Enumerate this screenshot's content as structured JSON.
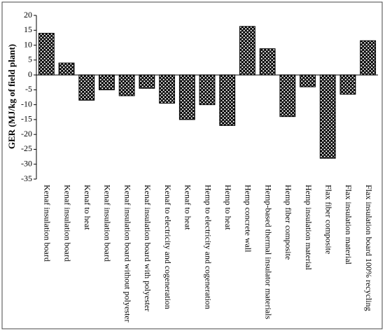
{
  "chart_data": {
    "type": "bar",
    "y_label": "GER (MJ/kg of field plant)",
    "categories": [
      "Kenaf insulation board",
      "Kenaf insulation board",
      "Kenaf to heat",
      "Kenaf insulation board",
      "Kenaf insulation board without polyester",
      "Kenaf insulation board with polyester",
      "Kenaf to electricity and cogeneration",
      "Kenaf to heat",
      "Hemp to electricity and cogeneration",
      "Hemp to heat",
      "Hemp concrete wall",
      "Hemp-based thermal insulator materials",
      "Hemp fiber composite",
      "Hemp insulation material",
      "Flax fiber composite",
      "Flax insulation material",
      "Flax insulation board 100% recycling"
    ],
    "values": [
      14,
      4,
      -8.5,
      -5,
      -7,
      -4.5,
      -9.5,
      -15,
      -10,
      -17,
      16.3,
      8.8,
      -14,
      -4,
      -28,
      -6.5,
      11.5
    ],
    "color": "#000000",
    "ylim": [
      -35,
      20
    ],
    "yticks": [
      -35,
      -30,
      -25,
      -20,
      -15,
      -10,
      -5,
      0,
      5,
      10,
      15,
      20
    ],
    "grid": false
  }
}
